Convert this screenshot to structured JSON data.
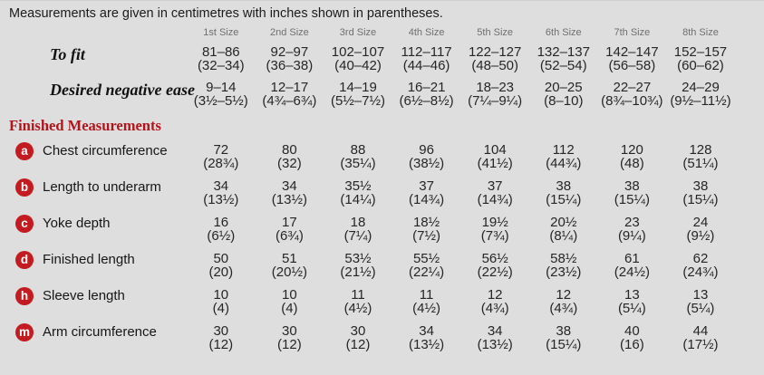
{
  "page": {
    "note": "Measurements are given in centimetres with inches shown in parentheses."
  },
  "colors": {
    "background": "#dedede",
    "heading_red": "#b2151b",
    "badge_red": "#c31b20",
    "header_gray": "#6f6f6f",
    "text": "#1f1f1f"
  },
  "table": {
    "size_headers": [
      "1st Size",
      "2nd Size",
      "3rd Size",
      "4th Size",
      "5th Size",
      "6th Size",
      "7th Size",
      "8th Size"
    ],
    "fit_rows": [
      {
        "label": "To fit",
        "cm": [
          "81–86",
          "92–97",
          "102–107",
          "112–117",
          "122–127",
          "132–137",
          "142–147",
          "152–157"
        ],
        "inches": [
          "(32–34)",
          "(36–38)",
          "(40–42)",
          "(44–46)",
          "(48–50)",
          "(52–54)",
          "(56–58)",
          "(60–62)"
        ]
      },
      {
        "label": "Desired negative ease",
        "cm": [
          "9–14",
          "12–17",
          "14–19",
          "16–21",
          "18–23",
          "20–25",
          "22–27",
          "24–29"
        ],
        "inches": [
          "(3½–5½)",
          "(4¾–6¾)",
          "(5½–7½)",
          "(6½–8½)",
          "(7¼–9¼)",
          "(8–10)",
          "(8¾–10¾)",
          "(9½–11½)"
        ]
      }
    ],
    "section_heading": "Finished Measurements",
    "measurement_rows": [
      {
        "key": "a",
        "label": "Chest circumference",
        "cm": [
          "72",
          "80",
          "88",
          "96",
          "104",
          "112",
          "120",
          "128"
        ],
        "inches": [
          "(28¾)",
          "(32)",
          "(35¼)",
          "(38½)",
          "(41½)",
          "(44¾)",
          "(48)",
          "(51¼)"
        ]
      },
      {
        "key": "b",
        "label": "Length to underarm",
        "cm": [
          "34",
          "34",
          "35½",
          "37",
          "37",
          "38",
          "38",
          "38"
        ],
        "inches": [
          "(13½)",
          "(13½)",
          "(14¼)",
          "(14¾)",
          "(14¾)",
          "(15¼)",
          "(15¼)",
          "(15¼)"
        ]
      },
      {
        "key": "c",
        "label": "Yoke depth",
        "cm": [
          "16",
          "17",
          "18",
          "18½",
          "19½",
          "20½",
          "23",
          "24"
        ],
        "inches": [
          "(6½)",
          "(6¾)",
          "(7¼)",
          "(7½)",
          "(7¾)",
          "(8¼)",
          "(9¼)",
          "(9½)"
        ]
      },
      {
        "key": "d",
        "label": "Finished length",
        "cm": [
          "50",
          "51",
          "53½",
          "55½",
          "56½",
          "58½",
          "61",
          "62"
        ],
        "inches": [
          "(20)",
          "(20½)",
          "(21½)",
          "(22¼)",
          "(22½)",
          "(23½)",
          "(24½)",
          "(24¾)"
        ]
      },
      {
        "key": "h",
        "label": "Sleeve length",
        "cm": [
          "10",
          "10",
          "11",
          "11",
          "12",
          "12",
          "13",
          "13"
        ],
        "inches": [
          "(4)",
          "(4)",
          "(4½)",
          "(4½)",
          "(4¾)",
          "(4¾)",
          "(5¼)",
          "(5¼)"
        ]
      },
      {
        "key": "m",
        "label": "Arm circumference",
        "cm": [
          "30",
          "30",
          "30",
          "34",
          "34",
          "38",
          "40",
          "44"
        ],
        "inches": [
          "(12)",
          "(12)",
          "(12)",
          "(13½)",
          "(13½)",
          "(15¼)",
          "(16)",
          "(17½)"
        ]
      }
    ]
  }
}
